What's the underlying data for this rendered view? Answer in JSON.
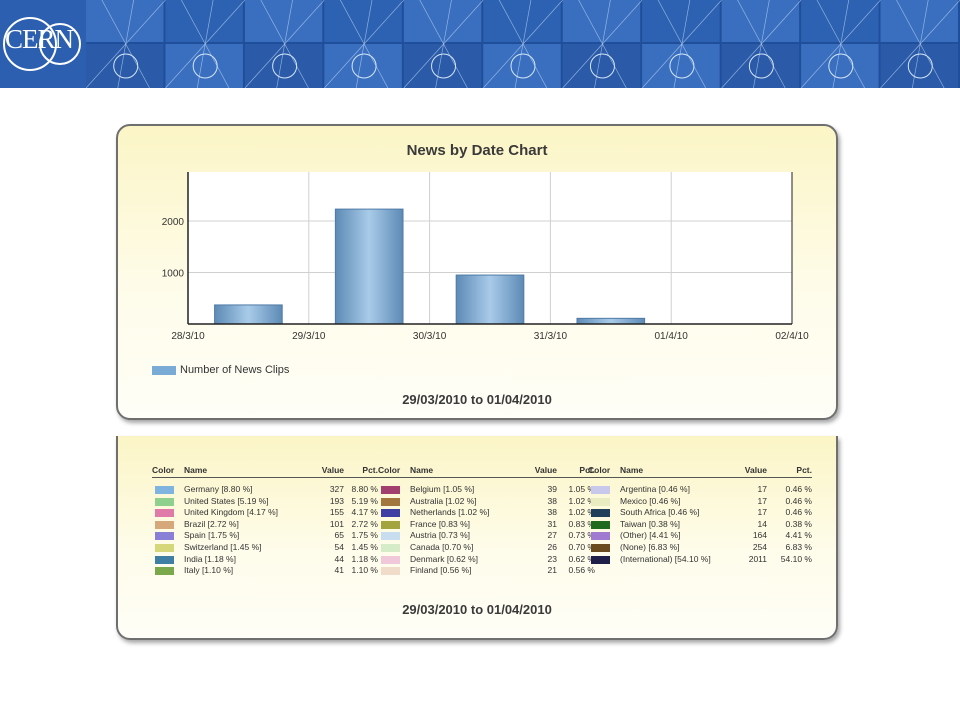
{
  "banner": {
    "logo": "CERN"
  },
  "chart_data": {
    "type": "bar",
    "title": "News by Date Chart",
    "categories": [
      "29/3/10",
      "30/3/10",
      "31/3/10",
      "01/4/10"
    ],
    "x_ticks": [
      "28/3/10",
      "29/3/10",
      "30/3/10",
      "31/3/10",
      "01/4/10",
      "02/4/10"
    ],
    "series": [
      {
        "name": "Number of News Clips",
        "values": [
          370,
          2230,
          950,
          110
        ]
      }
    ],
    "ylim": [
      0,
      2950
    ],
    "y_ticks": [
      "1000",
      "2000"
    ],
    "grid": true,
    "legend_position": "bottom-left",
    "bar_color": "#7aaad6",
    "subtitle": "29/03/2010 to 01/04/2010"
  },
  "legend_table": {
    "headers": {
      "color": "Color",
      "name": "Name",
      "value": "Value",
      "pct": "Pct."
    },
    "columns": [
      [
        {
          "name": "Germany [8.80 %]",
          "value": "327",
          "pct": "8.80 %",
          "color": "#7fb3e0"
        },
        {
          "name": "United States [5.19 %]",
          "value": "193",
          "pct": "5.19 %",
          "color": "#8fd08f"
        },
        {
          "name": "United Kingdom [4.17 %]",
          "value": "155",
          "pct": "4.17 %",
          "color": "#e07aa8"
        },
        {
          "name": "Brazil [2.72 %]",
          "value": "101",
          "pct": "2.72 %",
          "color": "#d6a77a"
        },
        {
          "name": "Spain [1.75 %]",
          "value": "65",
          "pct": "1.75 %",
          "color": "#8a7fd6"
        },
        {
          "name": "Switzerland [1.45 %]",
          "value": "54",
          "pct": "1.45 %",
          "color": "#d6d67a"
        },
        {
          "name": "India [1.18 %]",
          "value": "44",
          "pct": "1.18 %",
          "color": "#3f7fa3"
        },
        {
          "name": "Italy [1.10 %]",
          "value": "41",
          "pct": "1.10 %",
          "color": "#7aa84a"
        }
      ],
      [
        {
          "name": "Belgium [1.05 %]",
          "value": "39",
          "pct": "1.05 %",
          "color": "#a33f6f"
        },
        {
          "name": "Australia [1.02 %]",
          "value": "38",
          "pct": "1.02 %",
          "color": "#a3763f"
        },
        {
          "name": "Netherlands [1.02 %]",
          "value": "38",
          "pct": "1.02 %",
          "color": "#3f3fa3"
        },
        {
          "name": "France [0.83 %]",
          "value": "31",
          "pct": "0.83 %",
          "color": "#a3a33f"
        },
        {
          "name": "Austria [0.73 %]",
          "value": "27",
          "pct": "0.73 %",
          "color": "#c8def0"
        },
        {
          "name": "Canada [0.70 %]",
          "value": "26",
          "pct": "0.70 %",
          "color": "#d6ecc8"
        },
        {
          "name": "Denmark [0.62 %]",
          "value": "23",
          "pct": "0.62 %",
          "color": "#f0c8da"
        },
        {
          "name": "Finland [0.56 %]",
          "value": "21",
          "pct": "0.56 %",
          "color": "#f0dcc8"
        }
      ],
      [
        {
          "name": "Argentina [0.46 %]",
          "value": "17",
          "pct": "0.46 %",
          "color": "#c8c8ec"
        },
        {
          "name": "Mexico [0.46 %]",
          "value": "17",
          "pct": "0.46 %",
          "color": "#e8ecc0"
        },
        {
          "name": "South Africa [0.46 %]",
          "value": "17",
          "pct": "0.46 %",
          "color": "#1f3f5a"
        },
        {
          "name": "Taiwan [0.38 %]",
          "value": "14",
          "pct": "0.38 %",
          "color": "#1f6a1f"
        },
        {
          "name": "(Other) [4.41 %]",
          "value": "164",
          "pct": "4.41 %",
          "color": "#a07ad0"
        },
        {
          "name": "(None) [6.83 %]",
          "value": "254",
          "pct": "6.83 %",
          "color": "#6a4a1f"
        },
        {
          "name": "(International) [54.10 %]",
          "value": "2011",
          "pct": "54.10 %",
          "color": "#1f1f4a"
        }
      ]
    ],
    "subtitle": "29/03/2010 to 01/04/2010"
  }
}
